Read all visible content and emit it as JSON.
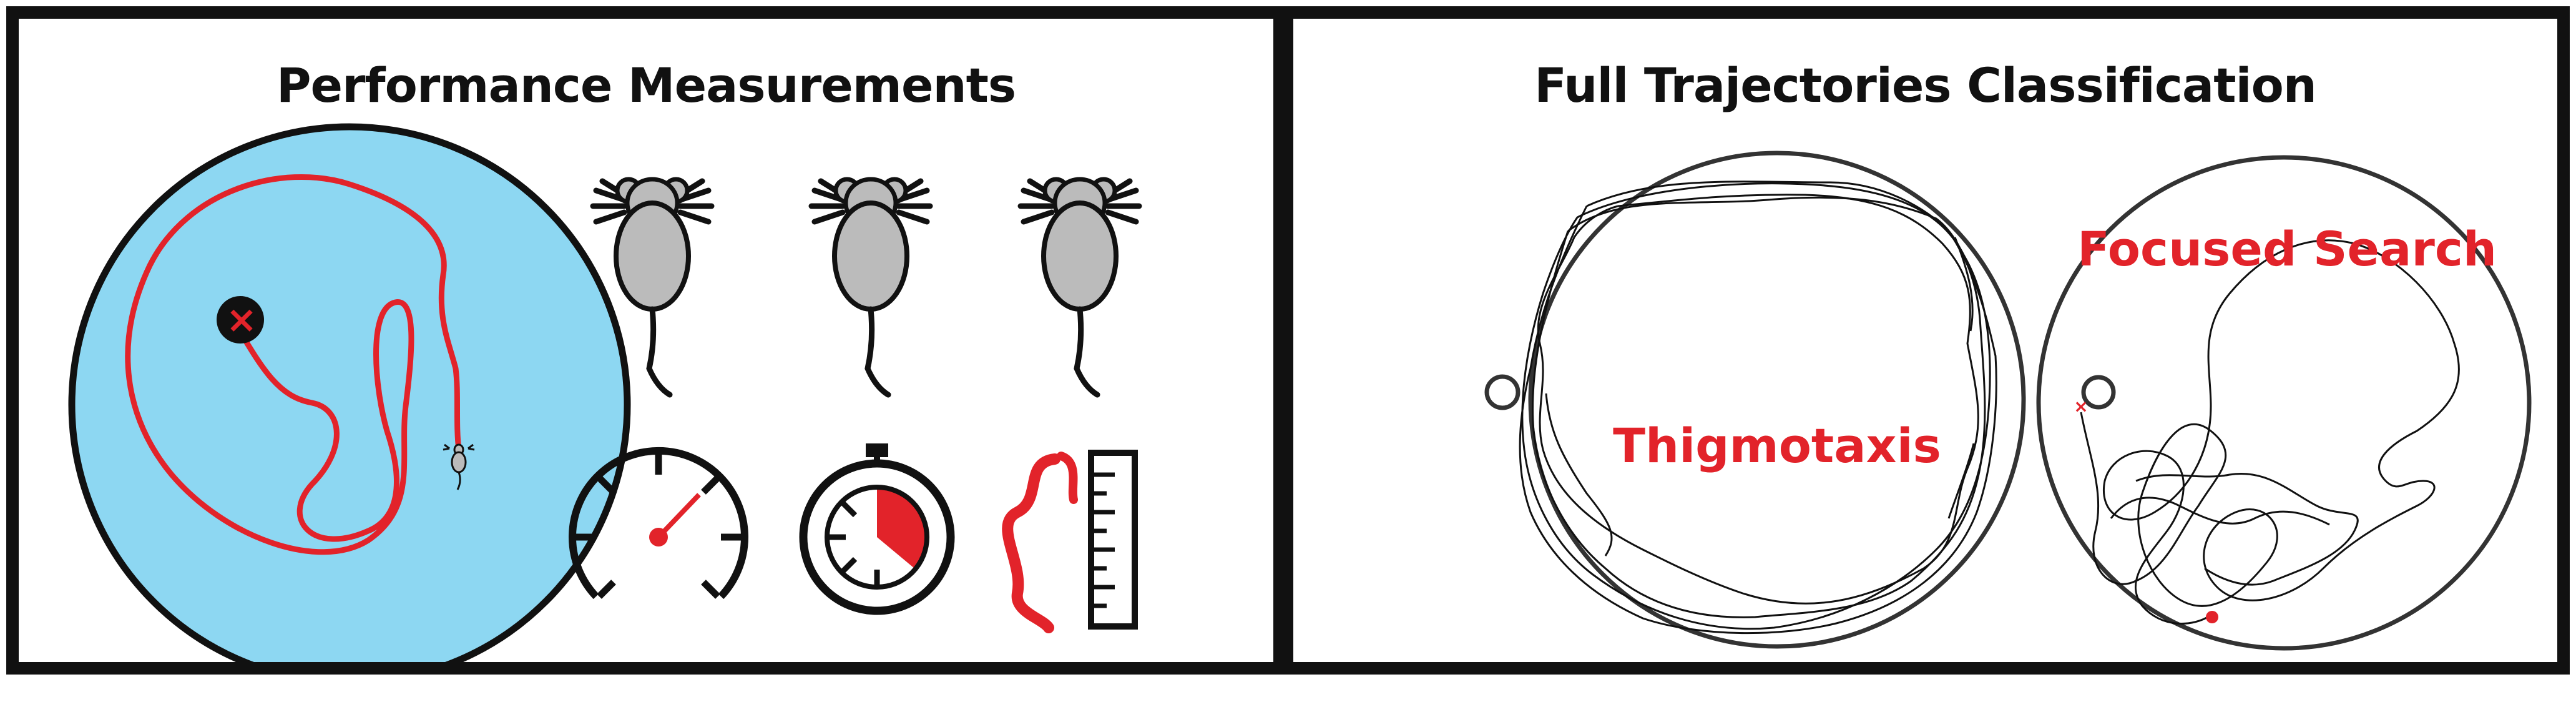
{
  "panels": {
    "left": {
      "title": "Performance Measurements",
      "pool_color": "#8dd7f2",
      "path_color": "#e2232a",
      "platform_color": "#111111",
      "platform_mark": "×",
      "mouse_icons": [
        "mouse-icon",
        "mouse-icon",
        "mouse-icon"
      ],
      "measure_icons": [
        "speedometer-icon",
        "stopwatch-icon",
        "ruler-path-icon"
      ]
    },
    "right": {
      "title": "Full Trajectories Classification",
      "label_color": "#e2232a",
      "pools": [
        {
          "label": "Thigmotaxis"
        },
        {
          "label": "Focused Search"
        }
      ]
    }
  }
}
